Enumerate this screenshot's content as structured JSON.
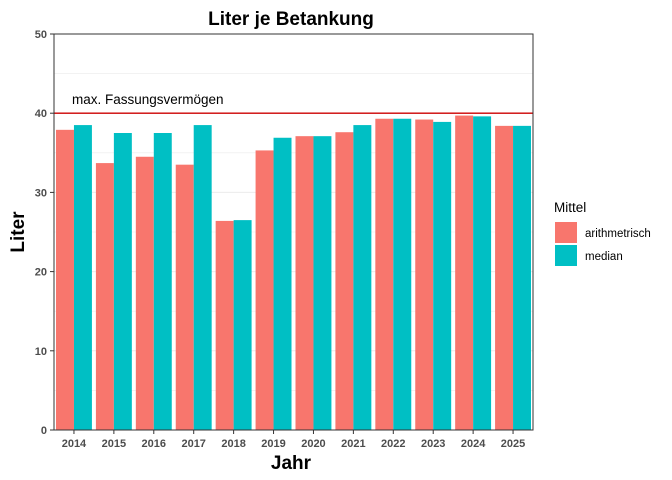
{
  "chart_data": {
    "type": "bar",
    "title": "Liter je Betankung",
    "xlabel": "Jahr",
    "ylabel": "Liter",
    "categories": [
      "2014",
      "2015",
      "2016",
      "2017",
      "2018",
      "2019",
      "2020",
      "2021",
      "2022",
      "2023",
      "2024",
      "2025"
    ],
    "series": [
      {
        "name": "arithmetrisch",
        "color": "#F8766D",
        "values": [
          37.9,
          33.7,
          34.5,
          33.5,
          26.4,
          35.3,
          37.1,
          37.6,
          39.3,
          39.2,
          39.7,
          38.4
        ]
      },
      {
        "name": "median",
        "color": "#00BFC4",
        "values": [
          38.5,
          37.5,
          37.5,
          38.5,
          26.5,
          36.9,
          37.1,
          38.5,
          39.3,
          38.9,
          39.6,
          38.4
        ]
      }
    ],
    "ylim": [
      0,
      50
    ],
    "yticks": [
      0,
      10,
      20,
      30,
      40,
      50
    ],
    "grid": true,
    "reference_line": {
      "value": 40,
      "label": "max. Fassungsvermögen",
      "color": "#cc0000"
    },
    "legend": {
      "title": "Mittel",
      "position": "right"
    }
  }
}
